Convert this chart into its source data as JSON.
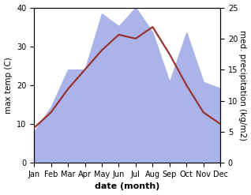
{
  "months": [
    "Jan",
    "Feb",
    "Mar",
    "Apr",
    "May",
    "Jun",
    "Jul",
    "Aug",
    "Sep",
    "Oct",
    "Nov",
    "Dec"
  ],
  "x": [
    0,
    1,
    2,
    3,
    4,
    5,
    6,
    7,
    8,
    9,
    10,
    11
  ],
  "temperature": [
    9,
    13,
    19,
    24,
    29,
    33,
    32,
    35,
    28,
    20,
    13,
    10
  ],
  "precipitation": [
    5,
    9,
    15,
    15,
    24,
    22,
    25,
    21,
    13,
    21,
    13,
    12
  ],
  "temp_color": "#993333",
  "precip_color": "#aab4e8",
  "precip_alpha": 1.0,
  "temp_ylim": [
    0,
    40
  ],
  "precip_ylim": [
    0,
    25
  ],
  "temp_yticks": [
    0,
    10,
    20,
    30,
    40
  ],
  "precip_yticks": [
    0,
    5,
    10,
    15,
    20,
    25
  ],
  "ylabel_left": "max temp (C)",
  "ylabel_right": "med. precipitation (kg/m2)",
  "xlabel": "date (month)",
  "xlabel_fontsize": 8,
  "ylabel_fontsize": 7.5,
  "tick_fontsize": 7,
  "line_width": 1.6,
  "background_color": "#ffffff"
}
